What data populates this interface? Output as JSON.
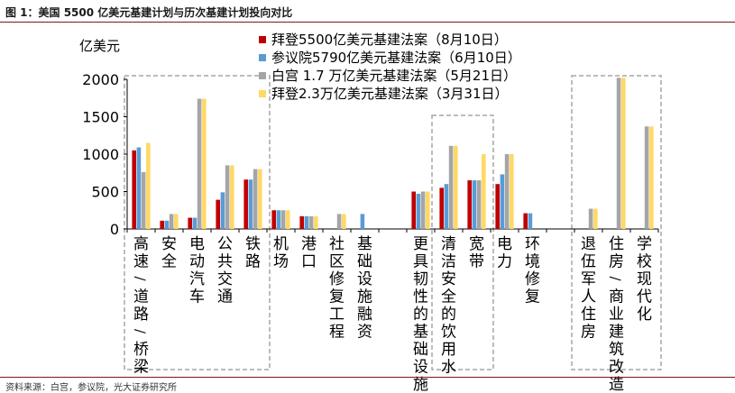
{
  "figure": {
    "title": "图 1：美国 5500 亿美元基建计划与历次基建计划投向对比",
    "source": "资料来源：白宫，参议院，光大证券研究所",
    "unit": "亿美元"
  },
  "colors": {
    "axis": "#000000",
    "highlight_box": "#a6a6a6",
    "title_rule": "#7a1818"
  },
  "chart_data": {
    "type": "bar",
    "ylabel": "亿美元",
    "ylim": [
      0,
      2000
    ],
    "yticks": [
      0,
      500,
      1000,
      1500,
      2000
    ],
    "legend_position": "top-right",
    "categories": [
      "高速/道路/桥梁",
      "安全",
      "电动汽车",
      "公共交通",
      "铁路",
      "机场",
      "港口",
      "社区修复工程",
      "基础设施融资",
      "",
      "更具韧性的基础设施",
      "清洁安全的饮用水",
      "宽带",
      "电力",
      "环境修复",
      "",
      "退伍军人住房",
      "住房/商业建筑改造",
      "学校现代化"
    ],
    "series": [
      {
        "name": "拜登5500亿美元基建法案（8月10日）",
        "color": "#c00000",
        "values": [
          1050,
          110,
          150,
          390,
          660,
          250,
          170,
          0,
          0,
          null,
          500,
          550,
          650,
          600,
          210,
          null,
          0,
          0,
          0
        ]
      },
      {
        "name": "参议院5790亿美元基建法案（6月10日）",
        "color": "#5b9bd5",
        "values": [
          1090,
          110,
          150,
          490,
          660,
          250,
          170,
          0,
          200,
          null,
          470,
          600,
          650,
          730,
          210,
          null,
          0,
          0,
          0
        ]
      },
      {
        "name": "白宫 1.7 万亿美元基建法案（5月21日）",
        "color": "#a5a5a5",
        "values": [
          760,
          200,
          1740,
          850,
          800,
          250,
          170,
          200,
          0,
          null,
          500,
          1110,
          650,
          1000,
          0,
          null,
          270,
          2020,
          1370
        ]
      },
      {
        "name": "拜登2.3万亿美元基建法案（3月31日）",
        "color": "#ffd966",
        "values": [
          1150,
          200,
          1740,
          850,
          800,
          250,
          170,
          200,
          0,
          null,
          500,
          1110,
          1000,
          1000,
          0,
          null,
          270,
          2020,
          1370
        ]
      }
    ],
    "highlight_groups": [
      {
        "from": "高速/道路/桥梁",
        "to": "铁路"
      },
      {
        "from": "清洁安全的饮用水",
        "to": "宽带"
      },
      {
        "from": "退伍军人住房",
        "to": "学校现代化"
      }
    ]
  }
}
